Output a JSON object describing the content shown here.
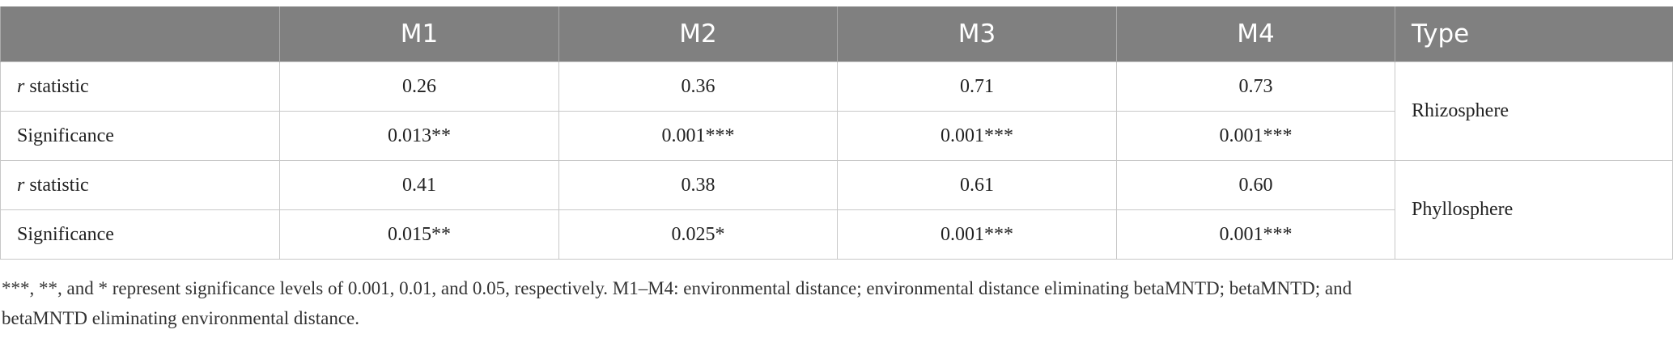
{
  "table": {
    "columns": [
      "M1",
      "M2",
      "M3",
      "M4"
    ],
    "type_header": "Type",
    "groups": [
      {
        "type": "Rhizosphere",
        "rows": [
          {
            "label": {
              "italic": "r",
              "text": "statistic"
            },
            "cells": [
              "0.26",
              "0.36",
              "0.71",
              "0.73"
            ]
          },
          {
            "label": {
              "text": "Significance"
            },
            "cells": [
              "0.013**",
              "0.001***",
              "0.001***",
              "0.001***"
            ]
          }
        ]
      },
      {
        "type": "Phyllosphere",
        "rows": [
          {
            "label": {
              "italic": "r",
              "text": "statistic"
            },
            "cells": [
              "0.41",
              "0.38",
              "0.61",
              "0.60"
            ]
          },
          {
            "label": {
              "text": "Significance"
            },
            "cells": [
              "0.015**",
              "0.025*",
              "0.001***",
              "0.001***"
            ]
          }
        ]
      }
    ]
  },
  "footnote": "***, **, and * represent significance levels of 0.001, 0.01, and 0.05, respectively. M1–M4: environmental distance; environmental distance eliminating betaMNTD; betaMNTD; and betaMNTD eliminating environmental distance."
}
